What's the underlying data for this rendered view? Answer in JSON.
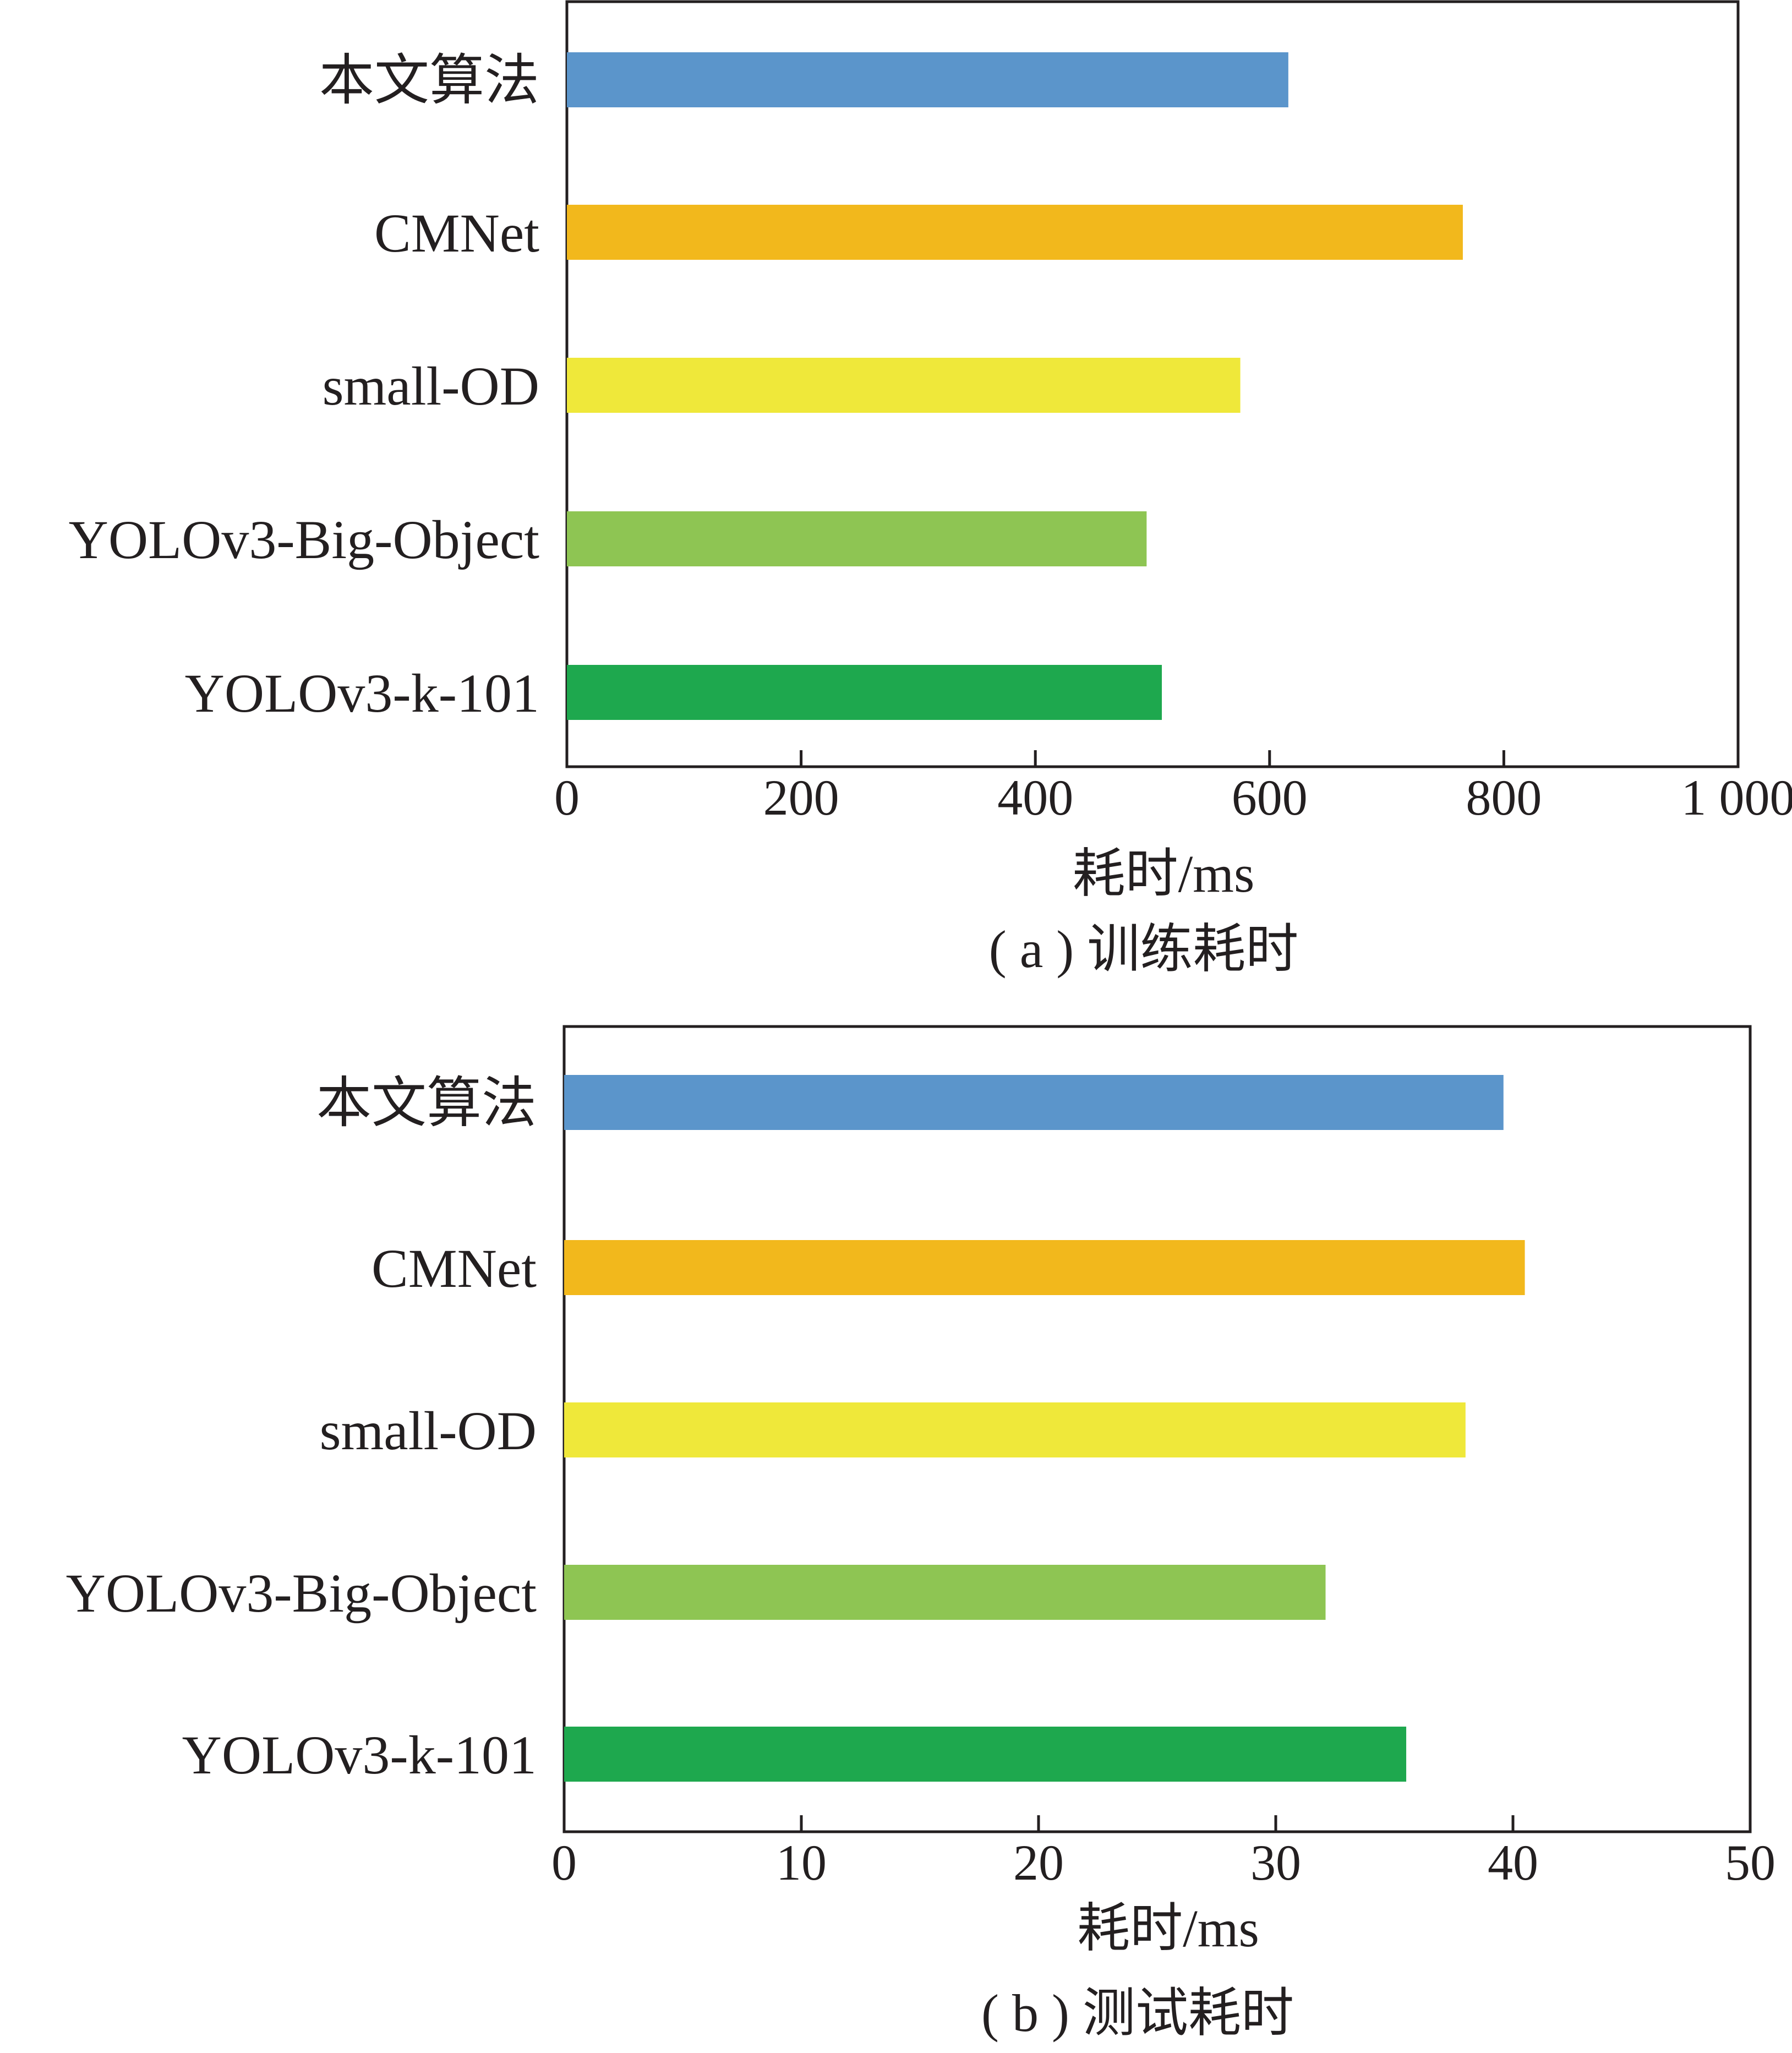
{
  "chart_data": [
    {
      "type": "bar",
      "orientation": "horizontal",
      "title": "",
      "caption": "( a ) 训练耗时",
      "xlabel": "耗时/ms",
      "ylabel": "",
      "xlim": [
        0,
        1000
      ],
      "x_ticks": [
        0,
        200,
        400,
        600,
        800,
        1000
      ],
      "x_tick_labels": [
        "0",
        "200",
        "400",
        "600",
        "800",
        "1 000"
      ],
      "grid": false,
      "legend": "none",
      "categories": [
        "本文算法",
        "CMNet",
        "small-OD",
        "YOLOv3-Big-Object",
        "YOLOv3-k-101"
      ],
      "values": [
        616,
        765,
        575,
        495,
        508
      ],
      "colors": [
        "#5b95cb",
        "#f2b81c",
        "#efe83a",
        "#8ec553",
        "#1ea84e"
      ]
    },
    {
      "type": "bar",
      "orientation": "horizontal",
      "title": "",
      "caption": "( b ) 测试耗时",
      "xlabel": "耗时/ms",
      "ylabel": "",
      "xlim": [
        0,
        50
      ],
      "x_ticks": [
        0,
        10,
        20,
        30,
        40,
        50
      ],
      "x_tick_labels": [
        "0",
        "10",
        "20",
        "30",
        "40",
        "50"
      ],
      "grid": false,
      "legend": "none",
      "categories": [
        "本文算法",
        "CMNet",
        "small-OD",
        "YOLOv3-Big-Object",
        "YOLOv3-k-101"
      ],
      "values": [
        39.6,
        40.5,
        38,
        32.1,
        35.5
      ],
      "colors": [
        "#5b95cb",
        "#f2b81c",
        "#efe83a",
        "#8ec553",
        "#1ea84e"
      ]
    }
  ]
}
